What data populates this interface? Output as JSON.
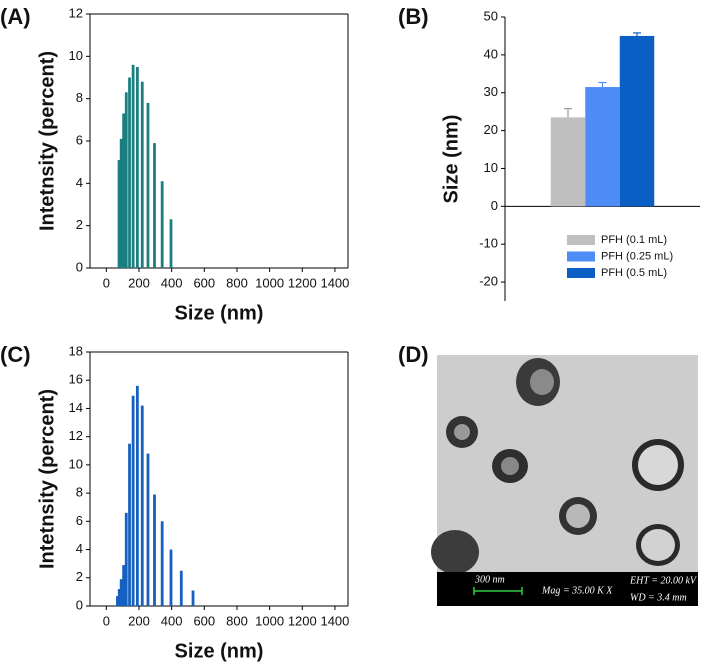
{
  "chart_data": [
    {
      "panel": "(A)",
      "type": "histogram",
      "color": "#1b7f7f",
      "x": [
        78,
        91,
        106,
        122,
        142,
        164,
        190,
        220,
        255,
        295,
        342,
        396
      ],
      "values": [
        5.1,
        6.1,
        7.3,
        8.3,
        9.0,
        9.6,
        9.5,
        8.8,
        7.8,
        5.9,
        4.1,
        2.3
      ],
      "xlabel": "Size (nm)",
      "ylabel": "Intetnsity (percent)",
      "xlim": [
        -100,
        1480
      ],
      "xticks": [
        0,
        200,
        400,
        600,
        800,
        1000,
        1200,
        1400
      ],
      "ylim": [
        0,
        12
      ],
      "yticks": [
        0,
        2,
        4,
        6,
        8,
        10,
        12
      ]
    },
    {
      "panel": "(B)",
      "type": "bar",
      "categories": [
        null
      ],
      "ylabel": "Size (nm)",
      "series": [
        {
          "name": "PFH (0.1 mL)",
          "color": "#bfbfbf",
          "values": [
            23.5
          ],
          "errors": [
            2.3
          ]
        },
        {
          "name": "PFH (0.25 mL)",
          "color": "#4d8df5",
          "values": [
            31.5
          ],
          "errors": [
            1.2
          ]
        },
        {
          "name": "PFH (0.5 mL)",
          "color": "#0b5fc4",
          "values": [
            45.0
          ],
          "errors": [
            0.8
          ]
        }
      ],
      "ylim": [
        -25,
        50
      ],
      "yticks": [
        -20,
        -10,
        0,
        10,
        20,
        30,
        40,
        50
      ]
    },
    {
      "panel": "(C)",
      "type": "histogram",
      "color": "#1560c0",
      "x": [
        68,
        79,
        91,
        106,
        122,
        142,
        164,
        190,
        220,
        255,
        295,
        342,
        396,
        459,
        531
      ],
      "values": [
        0.7,
        1.2,
        1.9,
        2.9,
        6.6,
        11.5,
        14.9,
        15.6,
        14.2,
        10.8,
        7.9,
        6.0,
        4.0,
        2.5,
        1.1
      ],
      "xlabel": "Size (nm)",
      "ylabel": "Intetnsity (percent)",
      "xlim": [
        -100,
        1480
      ],
      "xticks": [
        0,
        200,
        400,
        600,
        800,
        1000,
        1200,
        1400
      ],
      "ylim": [
        0,
        18
      ],
      "yticks": [
        0,
        2,
        4,
        6,
        8,
        10,
        12,
        14,
        16,
        18
      ]
    }
  ],
  "image": {
    "panel": "(D)",
    "scale_bar": "300 nm",
    "mag": "Mag =  35.00 K X",
    "eht": "EHT = 20.00 kV",
    "wd": "WD = 3.4 mm"
  }
}
